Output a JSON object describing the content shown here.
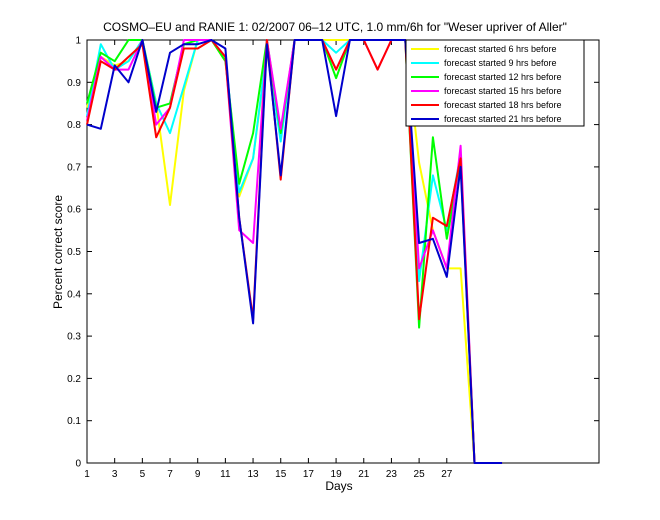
{
  "chart_data": {
    "type": "line",
    "title": "COSMO–EU and RANIE 1: 02/2007 06–12 UTC, 1.0 mm/6h for \"Weser upriver of Aller\"",
    "xlabel": "Days",
    "ylabel": "Percent correct score",
    "xlim": [
      1,
      38
    ],
    "ylim": [
      0,
      1
    ],
    "x_ticks": [
      1,
      3,
      5,
      7,
      9,
      11,
      13,
      15,
      17,
      19,
      21,
      23,
      25,
      27
    ],
    "y_ticks": [
      0,
      0.1,
      0.2,
      0.3,
      0.4,
      0.5,
      0.6,
      0.7,
      0.8,
      0.9,
      1
    ],
    "y_tick_labels": [
      "0",
      "0.1",
      "0.2",
      "0.3",
      "0.4",
      "0.5",
      "0.6",
      "0.7",
      "0.8",
      "0.9",
      "1"
    ],
    "grid": false,
    "legend_position": "top-right",
    "series": [
      {
        "name": "forecast started 6 hrs before",
        "color": "#ffff00",
        "x": [
          1,
          2,
          3,
          4,
          5,
          6,
          7,
          8,
          9,
          10,
          11,
          12,
          13,
          14,
          15,
          16,
          17,
          18,
          19,
          20,
          21,
          22,
          23,
          24,
          25,
          26,
          27,
          28,
          29,
          30,
          31
        ],
        "y": [
          0.84,
          0.96,
          0.94,
          0.95,
          1.0,
          0.85,
          0.61,
          0.88,
          1.0,
          1.0,
          0.95,
          0.63,
          0.72,
          0.97,
          0.78,
          1.0,
          1.0,
          1.0,
          1.0,
          1.0,
          1.0,
          1.0,
          1.0,
          1.0,
          0.71,
          0.55,
          0.46,
          0.46,
          0.0,
          0.0,
          0.0
        ]
      },
      {
        "name": "forecast started 9 hrs before",
        "color": "#00ffff",
        "x": [
          1,
          2,
          3,
          4,
          5,
          6,
          7,
          8,
          9,
          10,
          11,
          12,
          13,
          14,
          15,
          16,
          17,
          18,
          19,
          20,
          21,
          22,
          23,
          24,
          25,
          26,
          27,
          28,
          29,
          30,
          31
        ],
        "y": [
          0.82,
          0.99,
          0.93,
          0.95,
          1.0,
          0.85,
          0.78,
          0.89,
          1.0,
          1.0,
          0.96,
          0.64,
          0.72,
          0.98,
          0.76,
          1.0,
          1.0,
          1.0,
          0.97,
          1.0,
          1.0,
          1.0,
          1.0,
          1.0,
          0.43,
          0.68,
          0.55,
          0.73,
          0.0,
          0.0,
          0.0
        ]
      },
      {
        "name": "forecast started 12 hrs before",
        "color": "#00ff00",
        "x": [
          1,
          2,
          3,
          4,
          5,
          6,
          7,
          8,
          9,
          10,
          11,
          12,
          13,
          14,
          15,
          16,
          17,
          18,
          19,
          20,
          21,
          22,
          23,
          24,
          25,
          26,
          27,
          28,
          29,
          30,
          31
        ],
        "y": [
          0.85,
          0.97,
          0.95,
          1.0,
          1.0,
          0.84,
          0.85,
          0.99,
          1.0,
          1.0,
          0.95,
          0.66,
          0.78,
          1.0,
          0.78,
          1.0,
          1.0,
          1.0,
          0.91,
          1.0,
          1.0,
          1.0,
          1.0,
          1.0,
          0.32,
          0.77,
          0.53,
          0.71,
          0.0,
          0.0,
          0.0
        ]
      },
      {
        "name": "forecast started 15 hrs before",
        "color": "#ff00ff",
        "x": [
          1,
          2,
          3,
          4,
          5,
          6,
          7,
          8,
          9,
          10,
          11,
          12,
          13,
          14,
          15,
          16,
          17,
          18,
          19,
          20,
          21,
          22,
          23,
          24,
          25,
          26,
          27,
          28,
          29,
          30,
          31
        ],
        "y": [
          0.81,
          0.96,
          0.93,
          0.93,
          1.0,
          0.8,
          0.84,
          1.0,
          1.0,
          1.0,
          0.96,
          0.55,
          0.52,
          1.0,
          0.79,
          1.0,
          1.0,
          1.0,
          0.93,
          1.0,
          1.0,
          0.93,
          1.0,
          1.0,
          0.46,
          0.55,
          0.46,
          0.75,
          0.0,
          0.0,
          0.0
        ]
      },
      {
        "name": "forecast started 18 hrs before",
        "color": "#ff0000",
        "x": [
          1,
          2,
          3,
          4,
          5,
          6,
          7,
          8,
          9,
          10,
          11,
          12,
          13,
          14,
          15,
          16,
          17,
          18,
          19,
          20,
          21,
          22,
          23,
          24,
          25,
          26,
          27,
          28,
          29,
          30,
          31
        ],
        "y": [
          0.8,
          0.95,
          0.93,
          0.96,
          0.99,
          0.77,
          0.84,
          0.98,
          0.98,
          1.0,
          0.96,
          0.58,
          0.34,
          1.0,
          0.67,
          1.0,
          1.0,
          1.0,
          0.93,
          1.0,
          1.0,
          0.93,
          1.0,
          1.0,
          0.34,
          0.58,
          0.56,
          0.72,
          0.0,
          0.0,
          0.0
        ]
      },
      {
        "name": "forecast started 21 hrs before",
        "color": "#0000cc",
        "x": [
          1,
          2,
          3,
          4,
          5,
          6,
          7,
          8,
          9,
          10,
          11,
          12,
          13,
          14,
          15,
          16,
          17,
          18,
          19,
          20,
          21,
          22,
          23,
          24,
          25,
          26,
          27,
          28,
          29,
          30,
          31
        ],
        "y": [
          0.8,
          0.79,
          0.94,
          0.9,
          1.0,
          0.83,
          0.97,
          0.99,
          0.99,
          1.0,
          0.98,
          0.58,
          0.33,
          0.99,
          0.68,
          1.0,
          1.0,
          1.0,
          0.82,
          1.0,
          1.0,
          1.0,
          1.0,
          1.0,
          0.52,
          0.53,
          0.44,
          0.7,
          0.0,
          0.0,
          0.0
        ]
      }
    ]
  }
}
